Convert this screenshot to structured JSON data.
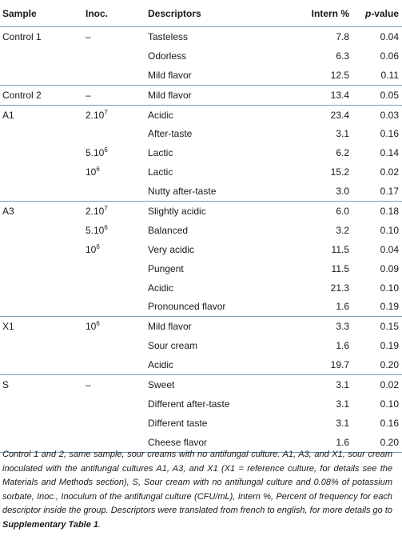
{
  "headers": {
    "sample": "Sample",
    "inoc": "Inoc.",
    "descriptors": "Descriptors",
    "intern": "Intern %",
    "pvalue_italic": "p",
    "pvalue_rest": "-value"
  },
  "rows": [
    {
      "sample": "Control 1",
      "inoc_base": "–",
      "inoc_exp": "",
      "descriptor": "Tasteless",
      "intern": "7.8",
      "p": "0.04"
    },
    {
      "sample": "",
      "inoc_base": "",
      "inoc_exp": "",
      "descriptor": "Odorless",
      "intern": "6.3",
      "p": "0.06"
    },
    {
      "sample": "",
      "inoc_base": "",
      "inoc_exp": "",
      "descriptor": "Mild flavor",
      "intern": "12.5",
      "p": "0.11"
    },
    {
      "sample": "Control 2",
      "inoc_base": "–",
      "inoc_exp": "",
      "descriptor": "Mild flavor",
      "intern": "13.4",
      "p": "0.05"
    },
    {
      "sample": "A1",
      "inoc_base": "2.10",
      "inoc_exp": "7",
      "descriptor": "Acidic",
      "intern": "23.4",
      "p": "0.03"
    },
    {
      "sample": "",
      "inoc_base": "",
      "inoc_exp": "",
      "descriptor": "After-taste",
      "intern": "3.1",
      "p": "0.16"
    },
    {
      "sample": "",
      "inoc_base": "5.10",
      "inoc_exp": "6",
      "descriptor": "Lactic",
      "intern": "6.2",
      "p": "0.14"
    },
    {
      "sample": "",
      "inoc_base": "10",
      "inoc_exp": "6",
      "descriptor": "Lactic",
      "intern": "15.2",
      "p": "0.02"
    },
    {
      "sample": "",
      "inoc_base": "",
      "inoc_exp": "",
      "descriptor": "Nutty after-taste",
      "intern": "3.0",
      "p": "0.17"
    },
    {
      "sample": "A3",
      "inoc_base": "2.10",
      "inoc_exp": "7",
      "descriptor": "Slightly acidic",
      "intern": "6.0",
      "p": "0.18"
    },
    {
      "sample": "",
      "inoc_base": "5.10",
      "inoc_exp": "6",
      "descriptor": "Balanced",
      "intern": "3.2",
      "p": "0.10"
    },
    {
      "sample": "",
      "inoc_base": "10",
      "inoc_exp": "6",
      "descriptor": "Very acidic",
      "intern": "11.5",
      "p": "0.04"
    },
    {
      "sample": "",
      "inoc_base": "",
      "inoc_exp": "",
      "descriptor": "Pungent",
      "intern": "11.5",
      "p": "0.09"
    },
    {
      "sample": "",
      "inoc_base": "",
      "inoc_exp": "",
      "descriptor": "Acidic",
      "intern": "21.3",
      "p": "0.10"
    },
    {
      "sample": "",
      "inoc_base": "",
      "inoc_exp": "",
      "descriptor": "Pronounced flavor",
      "intern": "1.6",
      "p": "0.19"
    },
    {
      "sample": "X1",
      "inoc_base": "10",
      "inoc_exp": "6",
      "descriptor": "Mild flavor",
      "intern": "3.3",
      "p": "0.15"
    },
    {
      "sample": "",
      "inoc_base": "",
      "inoc_exp": "",
      "descriptor": "Sour cream",
      "intern": "1.6",
      "p": "0.19"
    },
    {
      "sample": "",
      "inoc_base": "",
      "inoc_exp": "",
      "descriptor": "Acidic",
      "intern": "19.7",
      "p": "0.20"
    },
    {
      "sample": "S",
      "inoc_base": "–",
      "inoc_exp": "",
      "descriptor": "Sweet",
      "intern": "3.1",
      "p": "0.02"
    },
    {
      "sample": "",
      "inoc_base": "",
      "inoc_exp": "",
      "descriptor": "Different after-taste",
      "intern": "3.1",
      "p": "0.10"
    },
    {
      "sample": "",
      "inoc_base": "",
      "inoc_exp": "",
      "descriptor": "Different taste",
      "intern": "3.1",
      "p": "0.16"
    },
    {
      "sample": "",
      "inoc_base": "",
      "inoc_exp": "",
      "descriptor": "Cheese flavor",
      "intern": "1.6",
      "p": "0.20"
    }
  ],
  "footnote": {
    "text": "Control 1 and 2, same sample, sour creams with no antifungal culture. A1, A3, and X1, sour cream inoculated with the antifungal cultures A1, A3, and X1 (X1 = reference culture, for details see the Materials and Methods section), S, Sour cream with no antifungal culture and 0.08% of potassium sorbate, Inoc., Inoculum of the antifungal culture (CFU/mL), Intern %, Percent of frequency for each descriptor inside the group. Descriptors were translated from french to english, for more details go to ",
    "bold_link": "Supplementary Table 1",
    "end": "."
  }
}
